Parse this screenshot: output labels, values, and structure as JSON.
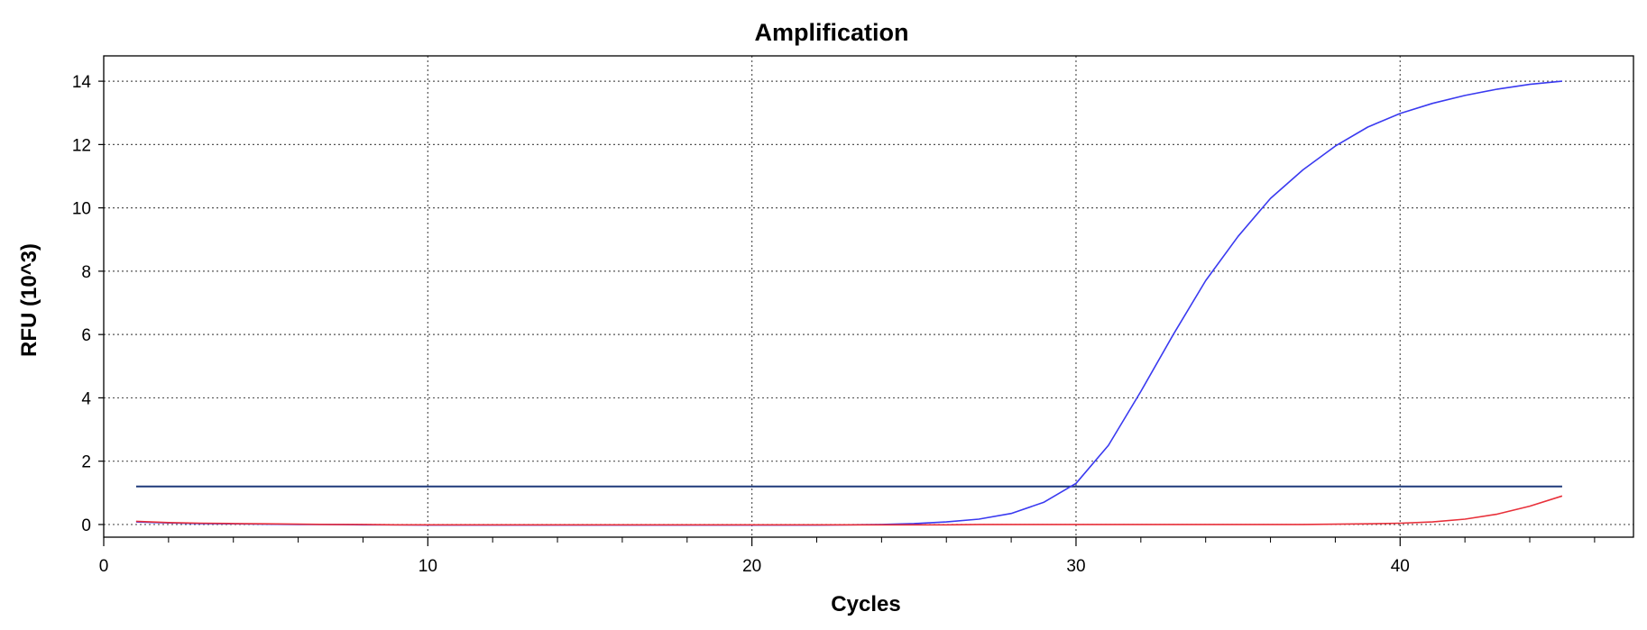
{
  "chart_data": {
    "type": "line",
    "title": "Amplification",
    "xlabel": "Cycles",
    "ylabel": "RFU (10^3)",
    "xlim": [
      0,
      47.2
    ],
    "ylim": [
      -0.4,
      14.8
    ],
    "x_ticks": [
      0,
      10,
      20,
      30,
      40
    ],
    "x_minor_step": 2,
    "y_ticks": [
      0,
      2,
      4,
      6,
      8,
      10,
      12,
      14
    ],
    "grid": true,
    "threshold": {
      "value": 1.2,
      "x_range": [
        1,
        45
      ],
      "color": "#1f3a7a"
    },
    "series": [
      {
        "color": "#3a3af0",
        "x": [
          1,
          2,
          3,
          4,
          5,
          6,
          7,
          8,
          9,
          10,
          11,
          12,
          13,
          14,
          15,
          16,
          17,
          18,
          19,
          20,
          21,
          22,
          23,
          24,
          25,
          26,
          27,
          28,
          29,
          30,
          31,
          32,
          33,
          34,
          35,
          36,
          37,
          38,
          39,
          40,
          41,
          42,
          43,
          44,
          45
        ],
        "y": [
          0.08,
          0.05,
          0.03,
          0.02,
          0.01,
          0.0,
          0.0,
          -0.01,
          -0.01,
          -0.02,
          -0.02,
          -0.02,
          -0.02,
          -0.02,
          -0.02,
          -0.02,
          -0.02,
          -0.02,
          -0.02,
          -0.02,
          -0.02,
          -0.02,
          -0.01,
          0.0,
          0.03,
          0.08,
          0.17,
          0.35,
          0.7,
          1.3,
          2.5,
          4.2,
          6.0,
          7.7,
          9.1,
          10.3,
          11.2,
          11.95,
          12.55,
          12.98,
          13.3,
          13.55,
          13.75,
          13.9,
          14.0
        ]
      },
      {
        "color": "#e8303a",
        "x": [
          1,
          2,
          3,
          4,
          5,
          6,
          7,
          8,
          9,
          10,
          11,
          12,
          13,
          14,
          15,
          16,
          17,
          18,
          19,
          20,
          21,
          22,
          23,
          24,
          25,
          26,
          27,
          28,
          29,
          30,
          31,
          32,
          33,
          34,
          35,
          36,
          37,
          38,
          39,
          40,
          41,
          42,
          43,
          44,
          45
        ],
        "y": [
          0.1,
          0.06,
          0.04,
          0.03,
          0.02,
          0.01,
          0.0,
          0.0,
          -0.01,
          -0.01,
          -0.01,
          -0.01,
          -0.01,
          -0.01,
          -0.01,
          -0.01,
          -0.01,
          -0.01,
          -0.01,
          -0.01,
          -0.01,
          -0.01,
          -0.01,
          -0.01,
          -0.01,
          -0.01,
          0.0,
          0.0,
          0.0,
          0.0,
          0.0,
          0.0,
          0.0,
          0.0,
          0.0,
          0.0,
          0.0,
          0.01,
          0.02,
          0.04,
          0.08,
          0.17,
          0.33,
          0.58,
          0.9
        ]
      }
    ]
  }
}
